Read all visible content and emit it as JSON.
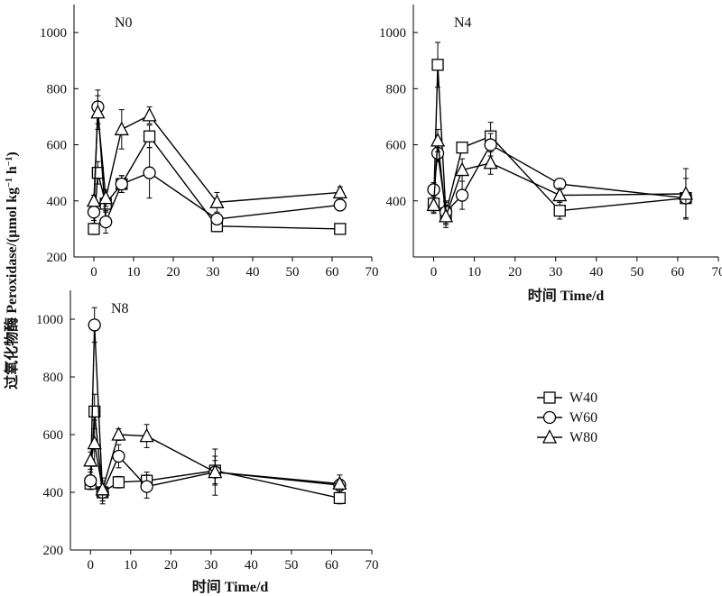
{
  "ylabel": "过氧化物酶 Peroxidase/(μmol kg",
  "ylabel_sup1": "−1",
  "ylabel_mid": " h",
  "ylabel_sup2": "−1",
  "ylabel_end": ")",
  "xlabel": "时间 Time/d",
  "legend": [
    "W40",
    "W60",
    "W80"
  ],
  "colors": {
    "line": "#000000",
    "marker_fill": "#ffffff"
  },
  "chart_data": [
    {
      "type": "line",
      "panel": "N0",
      "xlim": [
        -5,
        70
      ],
      "ylim": [
        200,
        1100
      ],
      "xticks": [
        0,
        10,
        20,
        30,
        40,
        50,
        60,
        70
      ],
      "yticks": [
        200,
        400,
        600,
        800,
        1000
      ],
      "series": [
        {
          "name": "W40",
          "marker": "square",
          "x": [
            0,
            1,
            3,
            7,
            14,
            31,
            62
          ],
          "y": [
            300,
            500,
            390,
            460,
            630,
            310,
            300
          ],
          "err": [
            20,
            40,
            30,
            30,
            40,
            20,
            15
          ]
        },
        {
          "name": "W60",
          "marker": "circle",
          "x": [
            0,
            1,
            3,
            7,
            14,
            31,
            62
          ],
          "y": [
            360,
            735,
            325,
            460,
            500,
            335,
            385
          ],
          "err": [
            30,
            60,
            40,
            30,
            90,
            20,
            20
          ]
        },
        {
          "name": "W80",
          "marker": "triangle",
          "x": [
            0,
            1,
            3,
            7,
            14,
            31,
            62
          ],
          "y": [
            400,
            715,
            410,
            655,
            705,
            395,
            430
          ],
          "err": [
            20,
            60,
            30,
            70,
            30,
            35,
            20
          ]
        }
      ]
    },
    {
      "type": "line",
      "panel": "N4",
      "xlim": [
        -5,
        70
      ],
      "ylim": [
        200,
        1100
      ],
      "xticks": [
        0,
        10,
        20,
        30,
        40,
        50,
        60,
        70
      ],
      "yticks": [
        400,
        600,
        800,
        1000
      ],
      "series": [
        {
          "name": "W40",
          "marker": "square",
          "x": [
            0,
            1,
            3,
            7,
            14,
            31,
            62
          ],
          "y": [
            390,
            885,
            355,
            590,
            630,
            365,
            410
          ],
          "err": [
            30,
            80,
            40,
            15,
            50,
            30,
            70
          ]
        },
        {
          "name": "W60",
          "marker": "circle",
          "x": [
            0,
            1,
            3,
            7,
            14,
            31,
            62
          ],
          "y": [
            440,
            570,
            360,
            420,
            600,
            460,
            410
          ],
          "err": [
            25,
            30,
            40,
            50,
            40,
            15,
            20
          ]
        },
        {
          "name": "W80",
          "marker": "triangle",
          "x": [
            0,
            1,
            3,
            7,
            14,
            31,
            62
          ],
          "y": [
            385,
            615,
            345,
            510,
            535,
            420,
            425
          ],
          "err": [
            30,
            40,
            40,
            40,
            40,
            25,
            90
          ]
        }
      ]
    },
    {
      "type": "line",
      "panel": "N8",
      "xlim": [
        -5,
        70
      ],
      "ylim": [
        200,
        1100
      ],
      "xticks": [
        0,
        10,
        20,
        30,
        40,
        50,
        60,
        70
      ],
      "yticks": [
        200,
        400,
        600,
        800,
        1000
      ],
      "series": [
        {
          "name": "W40",
          "marker": "square",
          "x": [
            0,
            1,
            3,
            7,
            14,
            31,
            62
          ],
          "y": [
            430,
            680,
            400,
            435,
            440,
            475,
            380
          ],
          "err": [
            20,
            60,
            30,
            20,
            30,
            50,
            20
          ]
        },
        {
          "name": "W60",
          "marker": "circle",
          "x": [
            0,
            1,
            3,
            7,
            14,
            31,
            62
          ],
          "y": [
            440,
            980,
            400,
            525,
            420,
            470,
            425
          ],
          "err": [
            30,
            60,
            40,
            40,
            40,
            80,
            20
          ]
        },
        {
          "name": "W80",
          "marker": "triangle",
          "x": [
            0,
            1,
            3,
            7,
            14,
            31,
            62
          ],
          "y": [
            510,
            570,
            410,
            600,
            595,
            470,
            430
          ],
          "err": [
            30,
            80,
            40,
            20,
            40,
            40,
            30
          ]
        }
      ]
    }
  ]
}
